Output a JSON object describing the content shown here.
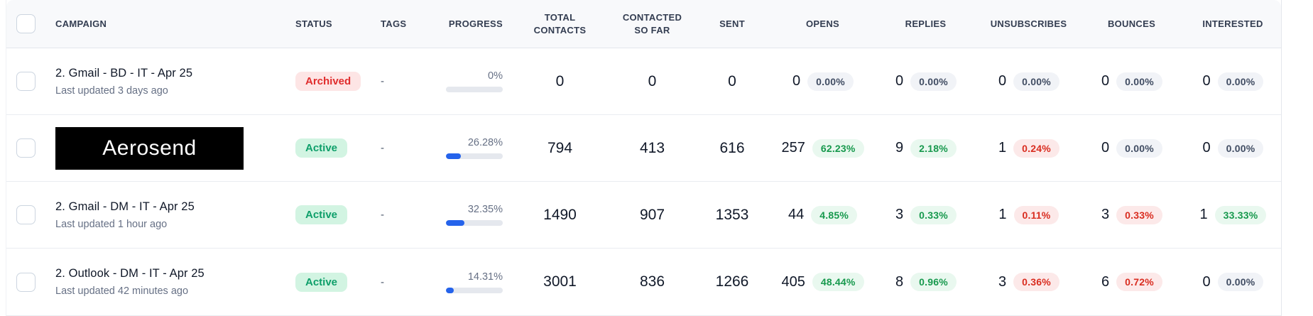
{
  "colors": {
    "accent_blue": "#2563eb",
    "active_green": "#0e9f6a",
    "archived_red": "#e02d2d",
    "pill_green_text": "#17994d",
    "pill_red_text": "#d92d20",
    "header_bg": "#f8f9fb"
  },
  "table": {
    "header": {
      "campaign": "CAMPAIGN",
      "status": "STATUS",
      "tags": "TAGS",
      "progress": "PROGRESS",
      "total_contacts": "TOTAL CONTACTS",
      "contacted_so_far": "CONTACTED SO FAR",
      "sent": "SENT",
      "opens": "OPENS",
      "replies": "REPLIES",
      "unsubscribes": "UNSUBSCRIBES",
      "bounces": "BOUNCES",
      "interested": "INTERESTED"
    },
    "rows": [
      {
        "campaign": {
          "title": "2. Gmail - BD - IT - Apr 25",
          "subtitle": "Last updated 3 days ago"
        },
        "status": {
          "label": "Archived",
          "tone": "archived"
        },
        "tags": "-",
        "progress": {
          "label": "0%",
          "value": 0
        },
        "total_contacts": "0",
        "contacted_so_far": "0",
        "sent": "0",
        "opens": {
          "count": "0",
          "pct": "0.00%",
          "tone": "gray"
        },
        "replies": {
          "count": "0",
          "pct": "0.00%",
          "tone": "gray"
        },
        "unsubscribes": {
          "count": "0",
          "pct": "0.00%",
          "tone": "gray"
        },
        "bounces": {
          "count": "0",
          "pct": "0.00%",
          "tone": "gray"
        },
        "interested": {
          "count": "0",
          "pct": "0.00%",
          "tone": "gray"
        }
      },
      {
        "campaign": {
          "redacted_label": "Aerosend"
        },
        "status": {
          "label": "Active",
          "tone": "active"
        },
        "tags": "-",
        "progress": {
          "label": "26.28%",
          "value": 26.28
        },
        "total_contacts": "794",
        "contacted_so_far": "413",
        "sent": "616",
        "opens": {
          "count": "257",
          "pct": "62.23%",
          "tone": "green"
        },
        "replies": {
          "count": "9",
          "pct": "2.18%",
          "tone": "green"
        },
        "unsubscribes": {
          "count": "1",
          "pct": "0.24%",
          "tone": "red"
        },
        "bounces": {
          "count": "0",
          "pct": "0.00%",
          "tone": "gray"
        },
        "interested": {
          "count": "0",
          "pct": "0.00%",
          "tone": "gray"
        }
      },
      {
        "campaign": {
          "title": "2. Gmail - DM - IT - Apr 25",
          "subtitle": "Last updated 1 hour ago"
        },
        "status": {
          "label": "Active",
          "tone": "active"
        },
        "tags": "-",
        "progress": {
          "label": "32.35%",
          "value": 32.35
        },
        "total_contacts": "1490",
        "contacted_so_far": "907",
        "sent": "1353",
        "opens": {
          "count": "44",
          "pct": "4.85%",
          "tone": "green"
        },
        "replies": {
          "count": "3",
          "pct": "0.33%",
          "tone": "green"
        },
        "unsubscribes": {
          "count": "1",
          "pct": "0.11%",
          "tone": "red"
        },
        "bounces": {
          "count": "3",
          "pct": "0.33%",
          "tone": "red"
        },
        "interested": {
          "count": "1",
          "pct": "33.33%",
          "tone": "green"
        }
      },
      {
        "campaign": {
          "title": "2. Outlook - DM - IT - Apr 25",
          "subtitle": "Last updated 42 minutes ago"
        },
        "status": {
          "label": "Active",
          "tone": "active"
        },
        "tags": "-",
        "progress": {
          "label": "14.31%",
          "value": 14.31
        },
        "total_contacts": "3001",
        "contacted_so_far": "836",
        "sent": "1266",
        "opens": {
          "count": "405",
          "pct": "48.44%",
          "tone": "green"
        },
        "replies": {
          "count": "8",
          "pct": "0.96%",
          "tone": "green"
        },
        "unsubscribes": {
          "count": "3",
          "pct": "0.36%",
          "tone": "red"
        },
        "bounces": {
          "count": "6",
          "pct": "0.72%",
          "tone": "red"
        },
        "interested": {
          "count": "0",
          "pct": "0.00%",
          "tone": "gray"
        }
      }
    ]
  }
}
